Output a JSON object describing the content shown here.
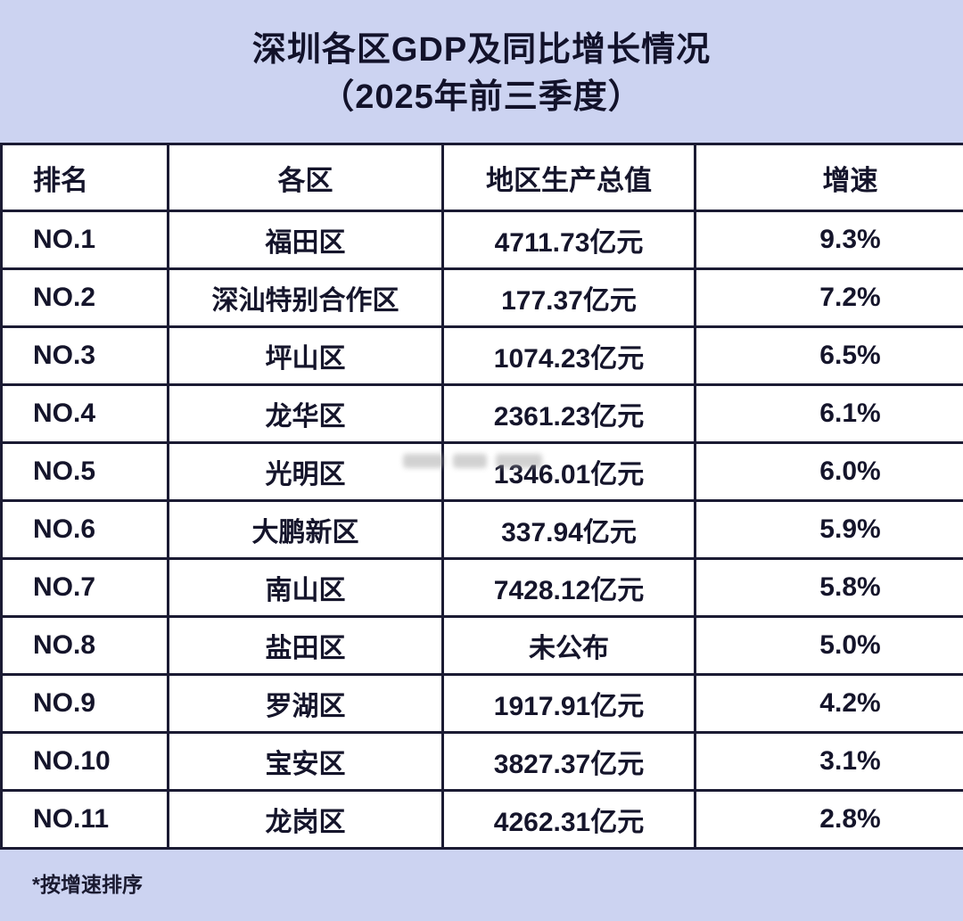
{
  "page": {
    "title_line1": "深圳各区GDP及同比增长情况",
    "title_line2": "（2025年前三季度）",
    "footnote": "*按增速排序"
  },
  "colors": {
    "background": "#ccd3f1",
    "table_background": "#ffffff",
    "border": "#1b1b33",
    "text": "#14142a"
  },
  "chart_data": {
    "type": "table",
    "title": "深圳各区GDP及同比增长情况（2025年前三季度）",
    "columns": [
      "排名",
      "各区",
      "地区生产总值",
      "增速"
    ],
    "rows": [
      [
        "NO.1",
        "福田区",
        "4711.73亿元",
        "9.3%"
      ],
      [
        "NO.2",
        "深汕特别合作区",
        "177.37亿元",
        "7.2%"
      ],
      [
        "NO.3",
        "坪山区",
        "1074.23亿元",
        "6.5%"
      ],
      [
        "NO.4",
        "龙华区",
        "2361.23亿元",
        "6.1%"
      ],
      [
        "NO.5",
        "光明区",
        "1346.01亿元",
        "6.0%"
      ],
      [
        "NO.6",
        "大鹏新区",
        "337.94亿元",
        "5.9%"
      ],
      [
        "NO.7",
        "南山区",
        "7428.12亿元",
        "5.8%"
      ],
      [
        "NO.8",
        "盐田区",
        "未公布",
        "5.0%"
      ],
      [
        "NO.9",
        "罗湖区",
        "1917.91亿元",
        "4.2%"
      ],
      [
        "NO.10",
        "宝安区",
        "3827.37亿元",
        "3.1%"
      ],
      [
        "NO.11",
        "龙岗区",
        "4262.31亿元",
        "2.8%"
      ]
    ],
    "footnote": "*按增速排序",
    "layout": {
      "sort_order": "by growth rate descending",
      "grid": true
    }
  }
}
